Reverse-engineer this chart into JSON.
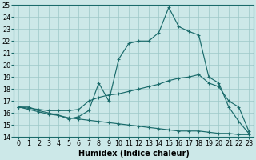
{
  "xlabel": "Humidex (Indice chaleur)",
  "xlim": [
    -0.5,
    23.5
  ],
  "ylim": [
    14,
    25
  ],
  "xticks": [
    0,
    1,
    2,
    3,
    4,
    5,
    6,
    7,
    8,
    9,
    10,
    11,
    12,
    13,
    14,
    15,
    16,
    17,
    18,
    19,
    20,
    21,
    22,
    23
  ],
  "yticks": [
    14,
    15,
    16,
    17,
    18,
    19,
    20,
    21,
    22,
    23,
    24,
    25
  ],
  "bg_color": "#cce8e8",
  "grid_color": "#9cc8c8",
  "line_color": "#1a6b6b",
  "line1_y": [
    16.5,
    16.5,
    16.2,
    16.0,
    15.8,
    15.5,
    15.7,
    16.2,
    18.5,
    17.0,
    20.5,
    21.8,
    22.0,
    22.0,
    22.7,
    24.8,
    23.2,
    22.8,
    22.5,
    19.0,
    18.5,
    16.5,
    15.3,
    14.3
  ],
  "line2_y": [
    16.5,
    16.4,
    16.3,
    16.2,
    16.2,
    16.2,
    16.3,
    17.0,
    17.3,
    17.5,
    17.6,
    17.8,
    18.0,
    18.2,
    18.4,
    18.7,
    18.9,
    19.0,
    19.2,
    18.5,
    18.2,
    17.0,
    16.5,
    14.5
  ],
  "line3_y": [
    16.5,
    16.3,
    16.1,
    15.9,
    15.8,
    15.6,
    15.5,
    15.4,
    15.3,
    15.2,
    15.1,
    15.0,
    14.9,
    14.8,
    14.7,
    14.6,
    14.5,
    14.5,
    14.5,
    14.4,
    14.3,
    14.3,
    14.2,
    14.2
  ],
  "tick_fontsize": 5.8,
  "label_fontsize": 7.0
}
